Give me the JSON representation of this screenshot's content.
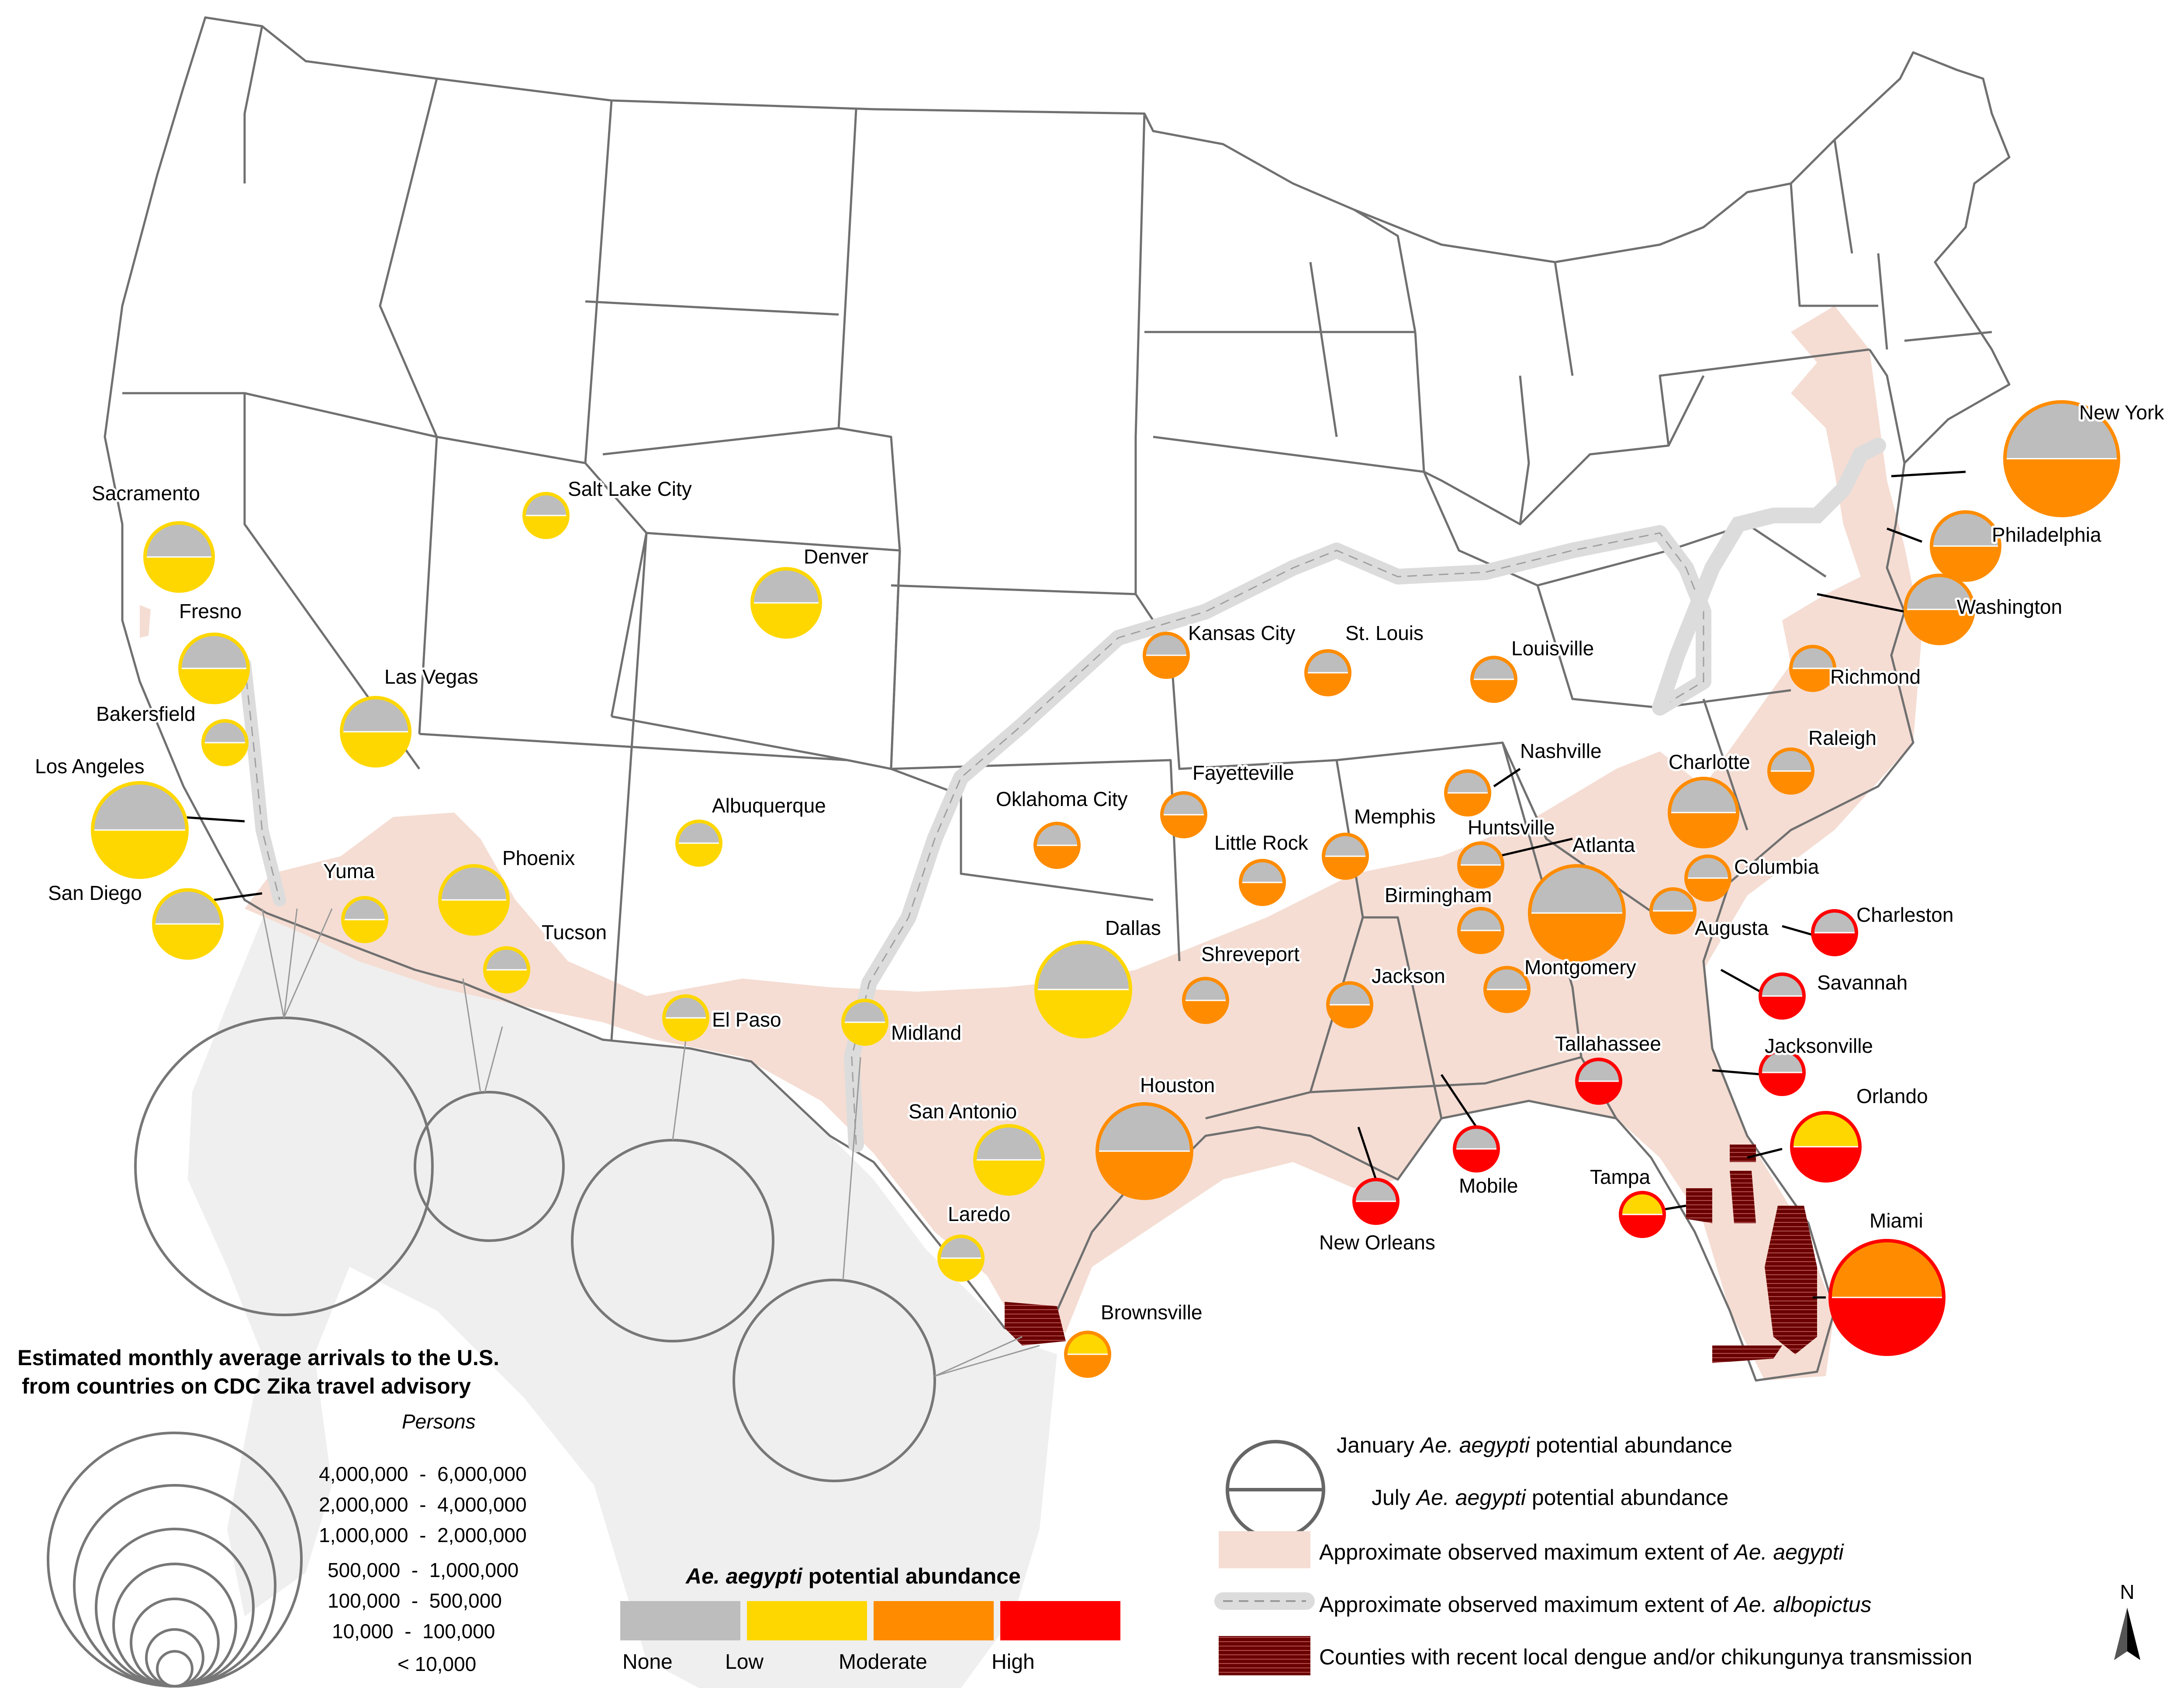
{
  "colors": {
    "none": "#bdbdbd",
    "low": "#ffd700",
    "moderate": "#ff8c00",
    "high": "#ff0000",
    "aegypti_extent": "#f5ddd3",
    "albopictus_line": "#d9d9d9",
    "dengue": "#6b0000",
    "mexico": "#efefef",
    "state_line": "#707070"
  },
  "cities": [
    {
      "name": "New York",
      "jan": "none",
      "jul": "moderate",
      "outline": "moderate",
      "arrivals_class": "1,000,000 - 2,000,000"
    },
    {
      "name": "Philadelphia",
      "jan": "none",
      "jul": "moderate",
      "outline": "moderate",
      "arrivals_class": "100,000 - 500,000"
    },
    {
      "name": "Washington",
      "jan": "none",
      "jul": "moderate",
      "outline": "moderate",
      "arrivals_class": "100,000 - 500,000"
    },
    {
      "name": "Richmond",
      "jan": "none",
      "jul": "moderate",
      "outline": "moderate",
      "arrivals_class": "10,000 - 100,000"
    },
    {
      "name": "Raleigh",
      "jan": "none",
      "jul": "moderate",
      "outline": "moderate",
      "arrivals_class": "10,000 - 100,000"
    },
    {
      "name": "Charlotte",
      "jan": "none",
      "jul": "moderate",
      "outline": "moderate",
      "arrivals_class": "100,000 - 500,000"
    },
    {
      "name": "Columbia",
      "jan": "none",
      "jul": "moderate",
      "outline": "moderate",
      "arrivals_class": "10,000 - 100,000"
    },
    {
      "name": "Augusta",
      "jan": "none",
      "jul": "moderate",
      "outline": "moderate",
      "arrivals_class": "10,000 - 100,000"
    },
    {
      "name": "Charleston",
      "jan": "none",
      "jul": "high",
      "outline": "high",
      "arrivals_class": "10,000 - 100,000"
    },
    {
      "name": "Savannah",
      "jan": "none",
      "jul": "high",
      "outline": "high",
      "arrivals_class": "10,000 - 100,000"
    },
    {
      "name": "Jacksonville",
      "jan": "none",
      "jul": "high",
      "outline": "high",
      "arrivals_class": "10,000 - 100,000"
    },
    {
      "name": "Orlando",
      "jan": "low",
      "jul": "high",
      "outline": "high",
      "arrivals_class": "100,000 - 500,000"
    },
    {
      "name": "Tampa",
      "jan": "low",
      "jul": "high",
      "outline": "high",
      "arrivals_class": "10,000 - 100,000"
    },
    {
      "name": "Miami",
      "jan": "moderate",
      "jul": "high",
      "outline": "high",
      "arrivals_class": "1,000,000 - 2,000,000"
    },
    {
      "name": "Tallahassee",
      "jan": "none",
      "jul": "high",
      "outline": "high",
      "arrivals_class": "10,000 - 100,000"
    },
    {
      "name": "Mobile",
      "jan": "none",
      "jul": "high",
      "outline": "high",
      "arrivals_class": "10,000 - 100,000"
    },
    {
      "name": "New Orleans",
      "jan": "none",
      "jul": "high",
      "outline": "high",
      "arrivals_class": "10,000 - 100,000"
    },
    {
      "name": "Atlanta",
      "jan": "none",
      "jul": "moderate",
      "outline": "moderate",
      "arrivals_class": "500,000 - 1,000,000"
    },
    {
      "name": "Montgomery",
      "jan": "none",
      "jul": "moderate",
      "outline": "moderate",
      "arrivals_class": "10,000 - 100,000"
    },
    {
      "name": "Birmingham",
      "jan": "none",
      "jul": "moderate",
      "outline": "moderate",
      "arrivals_class": "10,000 - 100,000"
    },
    {
      "name": "Huntsville",
      "jan": "none",
      "jul": "moderate",
      "outline": "moderate",
      "arrivals_class": "10,000 - 100,000"
    },
    {
      "name": "Nashville",
      "jan": "none",
      "jul": "moderate",
      "outline": "moderate",
      "arrivals_class": "10,000 - 100,000"
    },
    {
      "name": "Memphis",
      "jan": "none",
      "jul": "moderate",
      "outline": "moderate",
      "arrivals_class": "10,000 - 100,000"
    },
    {
      "name": "Jackson",
      "jan": "none",
      "jul": "moderate",
      "outline": "moderate",
      "arrivals_class": "10,000 - 100,000"
    },
    {
      "name": "Louisville",
      "jan": "none",
      "jul": "moderate",
      "outline": "moderate",
      "arrivals_class": "10,000 - 100,000"
    },
    {
      "name": "St. Louis",
      "jan": "none",
      "jul": "moderate",
      "outline": "moderate",
      "arrivals_class": "10,000 - 100,000"
    },
    {
      "name": "Kansas City",
      "jan": "none",
      "jul": "moderate",
      "outline": "moderate",
      "arrivals_class": "10,000 - 100,000"
    },
    {
      "name": "Fayetteville",
      "jan": "none",
      "jul": "moderate",
      "outline": "moderate",
      "arrivals_class": "10,000 - 100,000"
    },
    {
      "name": "Little Rock",
      "jan": "none",
      "jul": "moderate",
      "outline": "moderate",
      "arrivals_class": "10,000 - 100,000"
    },
    {
      "name": "Oklahoma City",
      "jan": "none",
      "jul": "moderate",
      "outline": "moderate",
      "arrivals_class": "10,000 - 100,000"
    },
    {
      "name": "Shreveport",
      "jan": "none",
      "jul": "moderate",
      "outline": "moderate",
      "arrivals_class": "10,000 - 100,000"
    },
    {
      "name": "Dallas",
      "jan": "none",
      "jul": "low",
      "outline": "low",
      "arrivals_class": "500,000 - 1,000,000"
    },
    {
      "name": "Houston",
      "jan": "none",
      "jul": "moderate",
      "outline": "moderate",
      "arrivals_class": "500,000 - 1,000,000"
    },
    {
      "name": "San Antonio",
      "jan": "none",
      "jul": "low",
      "outline": "low",
      "arrivals_class": "100,000 - 500,000"
    },
    {
      "name": "Laredo",
      "jan": "none",
      "jul": "low",
      "outline": "low",
      "arrivals_class": "10,000 - 100,000"
    },
    {
      "name": "Brownsville",
      "jan": "low",
      "jul": "moderate",
      "outline": "moderate",
      "arrivals_class": "10,000 - 100,000"
    },
    {
      "name": "Midland",
      "jan": "none",
      "jul": "low",
      "outline": "low",
      "arrivals_class": "10,000 - 100,000"
    },
    {
      "name": "El Paso",
      "jan": "none",
      "jul": "low",
      "outline": "low",
      "arrivals_class": "10,000 - 100,000"
    },
    {
      "name": "Albuquerque",
      "jan": "none",
      "jul": "low",
      "outline": "low",
      "arrivals_class": "10,000 - 100,000"
    },
    {
      "name": "Denver",
      "jan": "none",
      "jul": "low",
      "outline": "low",
      "arrivals_class": "100,000 - 500,000"
    },
    {
      "name": "Salt Lake City",
      "jan": "none",
      "jul": "low",
      "outline": "low",
      "arrivals_class": "10,000 - 100,000"
    },
    {
      "name": "Las Vegas",
      "jan": "none",
      "jul": "low",
      "outline": "low",
      "arrivals_class": "100,000 - 500,000"
    },
    {
      "name": "Phoenix",
      "jan": "none",
      "jul": "low",
      "outline": "low",
      "arrivals_class": "100,000 - 500,000"
    },
    {
      "name": "Tucson",
      "jan": "none",
      "jul": "low",
      "outline": "low",
      "arrivals_class": "10,000 - 100,000"
    },
    {
      "name": "Yuma",
      "jan": "none",
      "jul": "low",
      "outline": "low",
      "arrivals_class": "10,000 - 100,000"
    },
    {
      "name": "San Diego",
      "jan": "none",
      "jul": "low",
      "outline": "low",
      "arrivals_class": "100,000 - 500,000"
    },
    {
      "name": "Los Angeles",
      "jan": "none",
      "jul": "low",
      "outline": "low",
      "arrivals_class": "500,000 - 1,000,000"
    },
    {
      "name": "Bakersfield",
      "jan": "none",
      "jul": "low",
      "outline": "low",
      "arrivals_class": "10,000 - 100,000"
    },
    {
      "name": "Fresno",
      "jan": "none",
      "jul": "low",
      "outline": "low",
      "arrivals_class": "100,000 - 500,000"
    },
    {
      "name": "Sacramento",
      "jan": "none",
      "jul": "low",
      "outline": "low",
      "arrivals_class": "100,000 - 500,000"
    }
  ],
  "legend": {
    "arrivals_title_line1": "Estimated monthly average arrivals to the U.S.",
    "arrivals_title_line2": "from countries on CDC Zika travel advisory",
    "persons_label": "Persons",
    "classes": [
      "4,000,000  -  6,000,000",
      "2,000,000  -  4,000,000",
      "1,000,000  -  2,000,000",
      "500,000  -  1,000,000",
      "100,000  -  500,000",
      "10,000  -  100,000",
      "< 10,000"
    ],
    "abundance_title_bold": "Ae. aegypti",
    "abundance_title_rest": " potential abundance",
    "abundance_levels": [
      "None",
      "Low",
      "Moderate",
      "High"
    ],
    "january_pre": "January ",
    "january_species": "Ae. aegypti",
    "january_post": " potential abundance",
    "july_pre": "July ",
    "july_species": "Ae. aegypti",
    "july_post": " potential abundance",
    "aegypti_extent_pre": "Approximate observed maximum extent of ",
    "aegypti_extent_species": "Ae. aegypti",
    "albopictus_extent_pre": "Approximate observed maximum extent of ",
    "albopictus_extent_species": "Ae. albopictus",
    "dengue_label": "Counties with recent local dengue and/or chikungunya transmission",
    "north_label": "N"
  }
}
